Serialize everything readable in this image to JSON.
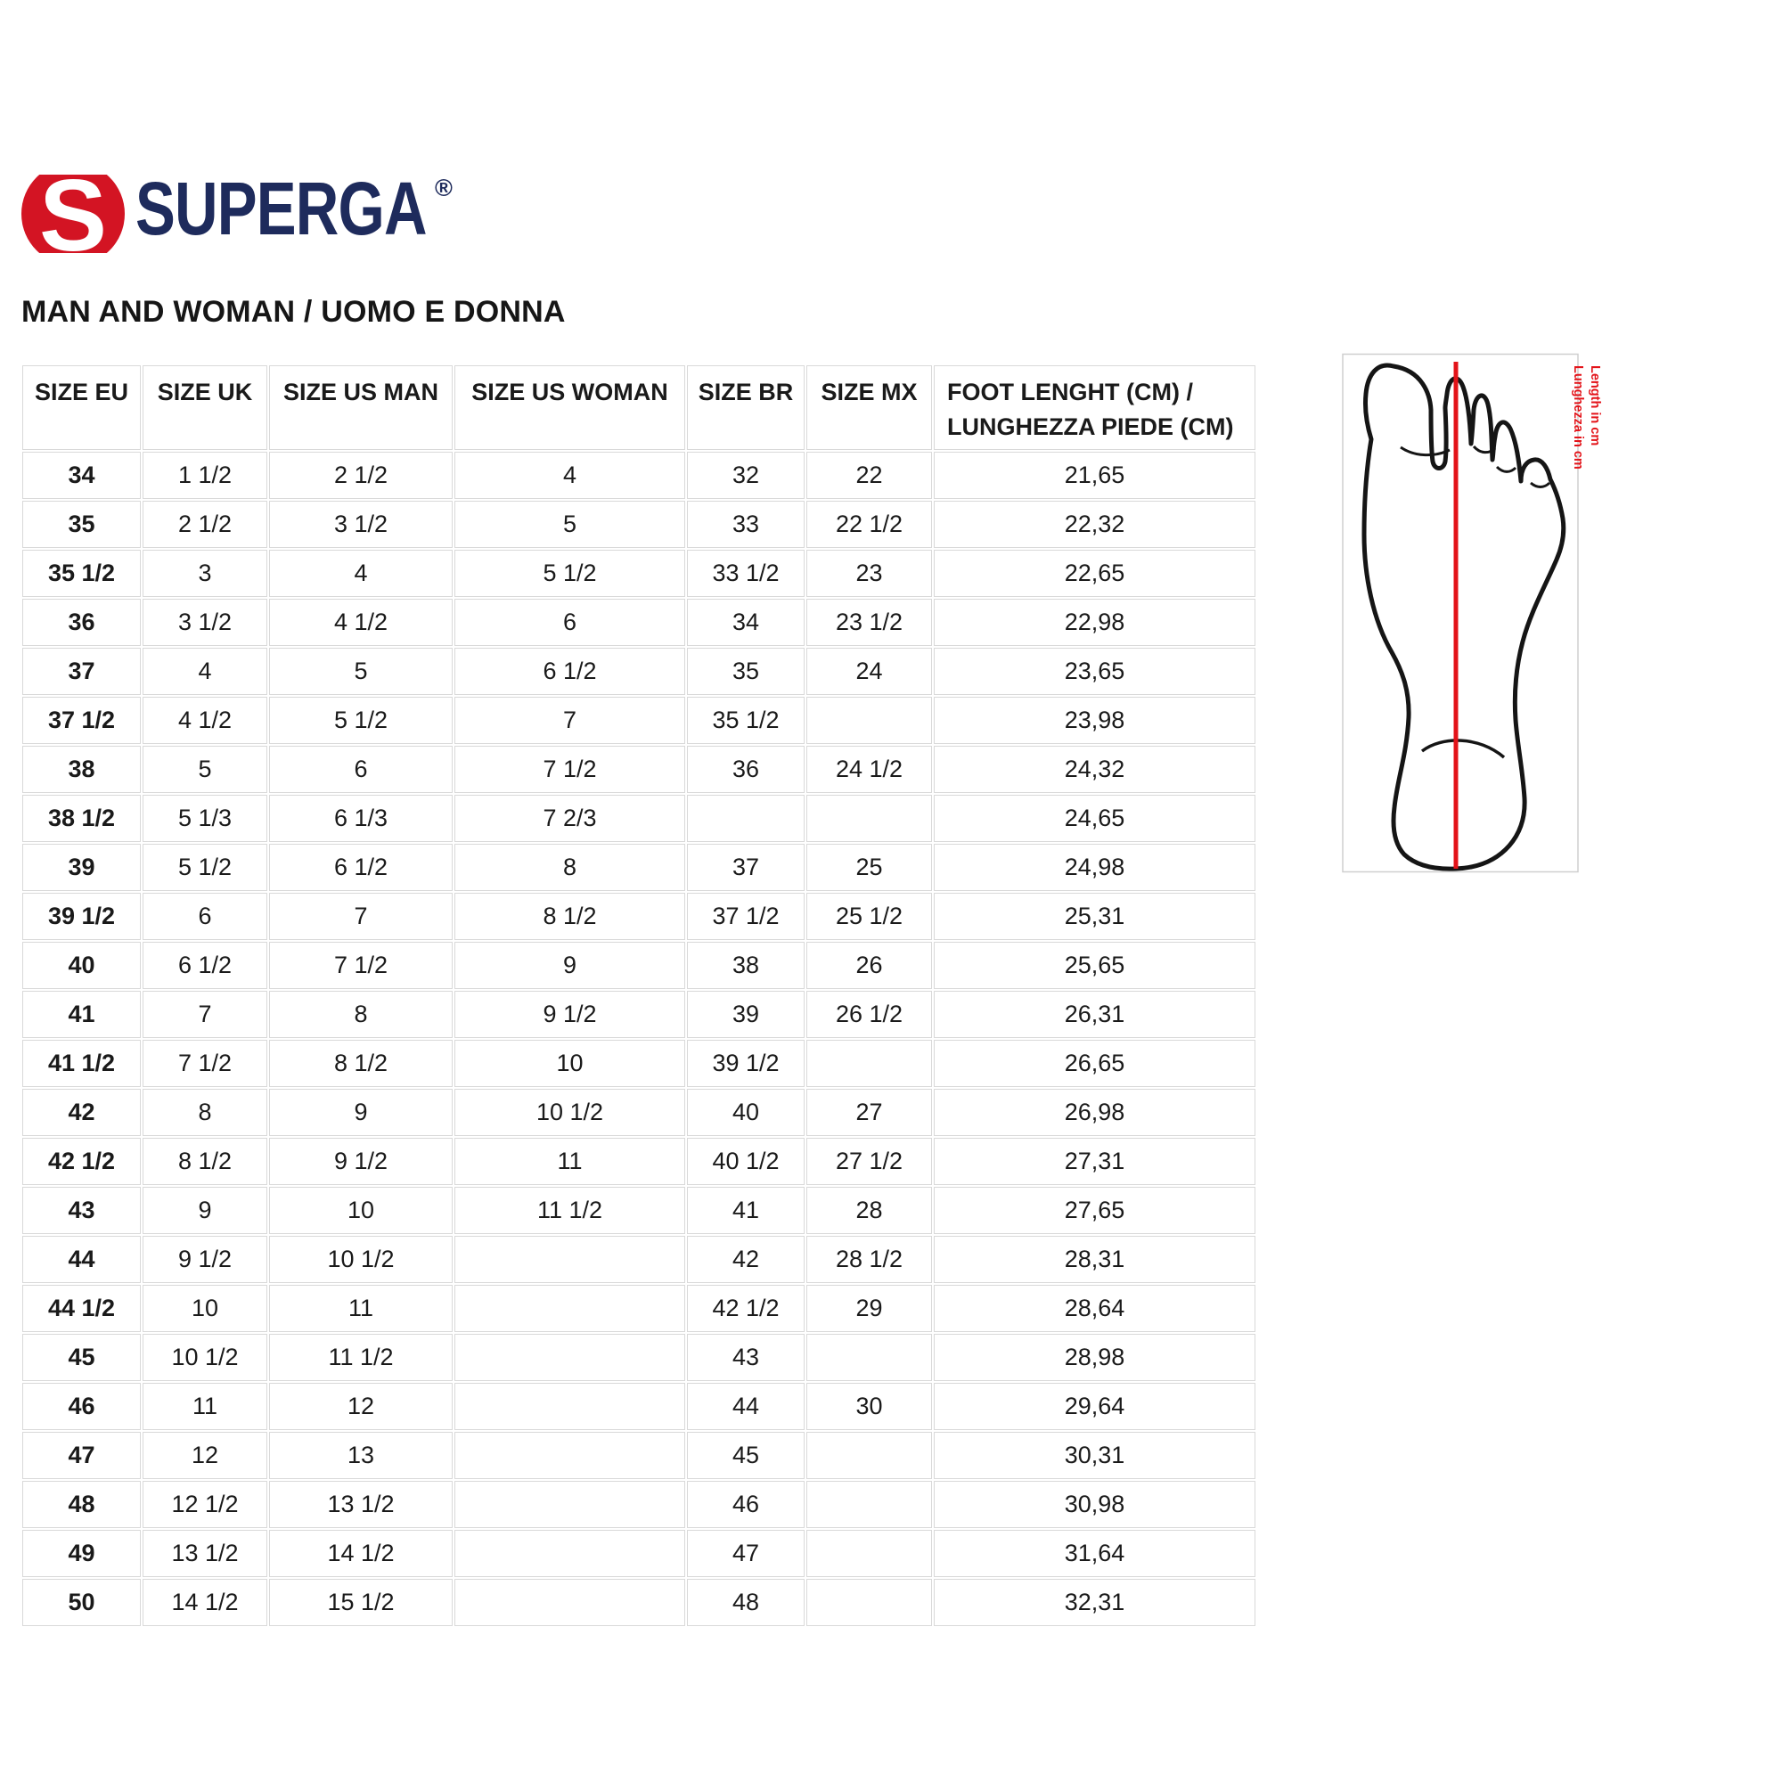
{
  "brand": {
    "emblem_letter": "S",
    "logo_text": "SUPERGA",
    "registered_mark": "®",
    "colors": {
      "red": "#d31423",
      "navy": "#1e2b5c"
    }
  },
  "title": "MAN AND WOMAN / UOMO E DONNA",
  "size_table": {
    "columns": [
      "SIZE EU",
      "SIZE UK",
      "SIZE US MAN",
      "SIZE US WOMAN",
      "SIZE BR",
      "SIZE MX"
    ],
    "foot_length_header": {
      "line1": "FOOT LENGHT (CM) /",
      "line2": "LUNGHEZZA PIEDE (CM)"
    },
    "rows": [
      [
        "34",
        "1 1/2",
        "2 1/2",
        "4",
        "32",
        "22",
        "21,65"
      ],
      [
        "35",
        "2 1/2",
        "3 1/2",
        "5",
        "33",
        "22 1/2",
        "22,32"
      ],
      [
        "35 1/2",
        "3",
        "4",
        "5 1/2",
        "33 1/2",
        "23",
        "22,65"
      ],
      [
        "36",
        "3 1/2",
        "4 1/2",
        "6",
        "34",
        "23 1/2",
        "22,98"
      ],
      [
        "37",
        "4",
        "5",
        "6 1/2",
        "35",
        "24",
        "23,65"
      ],
      [
        "37 1/2",
        "4 1/2",
        "5 1/2",
        "7",
        "35 1/2",
        "",
        "23,98"
      ],
      [
        "38",
        "5",
        "6",
        "7 1/2",
        "36",
        "24 1/2",
        "24,32"
      ],
      [
        "38 1/2",
        "5 1/3",
        "6 1/3",
        "7 2/3",
        "",
        "",
        "24,65"
      ],
      [
        "39",
        "5 1/2",
        "6 1/2",
        "8",
        "37",
        "25",
        "24,98"
      ],
      [
        "39 1/2",
        "6",
        "7",
        "8 1/2",
        "37 1/2",
        "25 1/2",
        "25,31"
      ],
      [
        "40",
        "6 1/2",
        "7 1/2",
        "9",
        "38",
        "26",
        "25,65"
      ],
      [
        "41",
        "7",
        "8",
        "9 1/2",
        "39",
        "26 1/2",
        "26,31"
      ],
      [
        "41 1/2",
        "7 1/2",
        "8 1/2",
        "10",
        "39 1/2",
        "",
        "26,65"
      ],
      [
        "42",
        "8",
        "9",
        "10 1/2",
        "40",
        "27",
        "26,98"
      ],
      [
        "42 1/2",
        "8 1/2",
        "9 1/2",
        "11",
        "40 1/2",
        "27 1/2",
        "27,31"
      ],
      [
        "43",
        "9",
        "10",
        "11 1/2",
        "41",
        "28",
        "27,65"
      ],
      [
        "44",
        "9 1/2",
        "10 1/2",
        "",
        "42",
        "28 1/2",
        "28,31"
      ],
      [
        "44 1/2",
        "10",
        "11",
        "",
        "42 1/2",
        "29",
        "28,64"
      ],
      [
        "45",
        "10 1/2",
        "11 1/2",
        "",
        "43",
        "",
        "28,98"
      ],
      [
        "46",
        "11",
        "12",
        "",
        "44",
        "30",
        "29,64"
      ],
      [
        "47",
        "12",
        "13",
        "",
        "45",
        "",
        "30,31"
      ],
      [
        "48",
        "12 1/2",
        "13 1/2",
        "",
        "46",
        "",
        "30,98"
      ],
      [
        "49",
        "13 1/2",
        "14 1/2",
        "",
        "47",
        "",
        "31,64"
      ],
      [
        "50",
        "14 1/2",
        "15 1/2",
        "",
        "48",
        "",
        "32,31"
      ]
    ]
  },
  "foot_diagram": {
    "label_en": "Length in cm",
    "label_it": "Lunghezza in cm",
    "accent_color": "#e31319"
  }
}
